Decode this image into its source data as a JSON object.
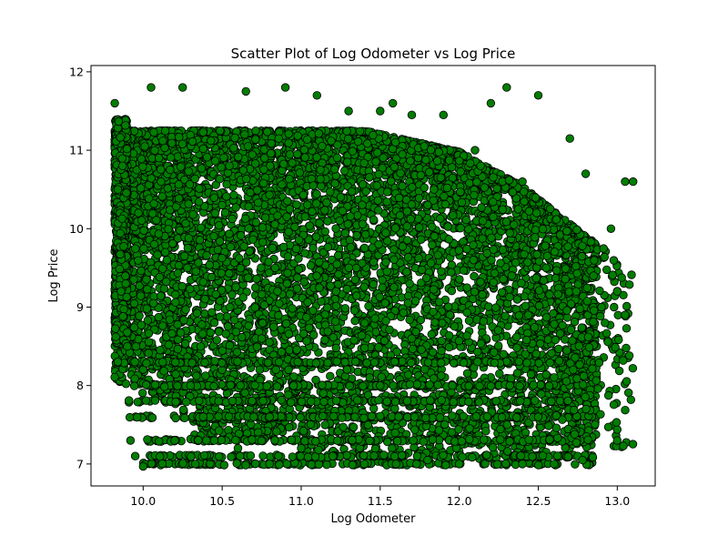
{
  "chart_data": {
    "type": "scatter",
    "title": "Scatter Plot of Log Odometer vs Log Price",
    "xlabel": "Log Odometer",
    "ylabel": "Log Price",
    "xlim": [
      9.67,
      13.24
    ],
    "ylim": [
      6.72,
      12.08
    ],
    "xticks": [
      "10.0",
      "10.5",
      "11.0",
      "11.5",
      "12.0",
      "12.5",
      "13.0"
    ],
    "yticks": [
      "7",
      "8",
      "9",
      "10",
      "11",
      "12"
    ],
    "grid": false,
    "marker_color": "#007d00",
    "marker_edge_color": "#000000",
    "series": [
      {
        "x": [
          9.82,
          9.84,
          9.86,
          9.9,
          9.92,
          9.95,
          10.0,
          10.05,
          10.1,
          10.2,
          10.25,
          10.3,
          10.4,
          10.5,
          10.6,
          10.65,
          10.7,
          10.8,
          10.9,
          11.0,
          11.1,
          11.2,
          11.3,
          11.4,
          11.5,
          11.6,
          11.7,
          11.8,
          11.9,
          12.0,
          12.1,
          12.2,
          12.3,
          12.4,
          12.5,
          12.6,
          12.7,
          12.75,
          12.8,
          12.9,
          13.0,
          13.05,
          13.1,
          9.97,
          10.07,
          10.28,
          10.55,
          10.75,
          10.92,
          11.14,
          11.49,
          11.58,
          11.84,
          12.09,
          12.28,
          12.49,
          12.74,
          12.96,
          13.05,
          10.33,
          10.8,
          11.5,
          12.4,
          12.78,
          9.87,
          10.15,
          10.45,
          10.85,
          11.25,
          11.7,
          12.15,
          12.55,
          12.85,
          13.0
        ],
        "y": [
          11.6,
          10.5,
          9.2,
          8.5,
          7.3,
          7.1,
          6.97,
          11.8,
          10.9,
          7.3,
          11.8,
          8.0,
          7.3,
          10.3,
          7.2,
          11.75,
          7.6,
          7.0,
          11.8,
          7.2,
          11.7,
          7.1,
          11.5,
          7.0,
          11.5,
          7.0,
          11.45,
          7.05,
          11.45,
          7.0,
          11.0,
          11.6,
          11.8,
          7.0,
          11.7,
          7.0,
          11.15,
          7.1,
          10.7,
          9.0,
          7.3,
          8.9,
          10.6,
          10.2,
          9.8,
          9.5,
          9.0,
          8.6,
          8.2,
          7.9,
          9.8,
          11.6,
          10.5,
          9.6,
          8.4,
          10.2,
          9.2,
          10.0,
          10.6,
          7.0,
          7.6,
          8.0,
          10.6,
          7.05,
          10.8,
          9.6,
          8.8,
          9.2,
          10.4,
          8.6,
          10.1,
          9.5,
          9.4,
          9.2
        ]
      }
    ]
  }
}
